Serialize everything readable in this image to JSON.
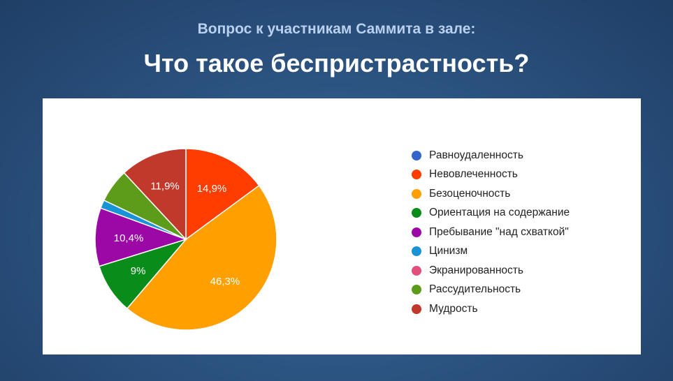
{
  "header": {
    "subtitle": "Вопрос к участникам Саммита в зале:",
    "title": "Что такое беспристрастность?"
  },
  "chart_data": {
    "type": "pie",
    "categories": [
      "Равноудаленность",
      "Невовлеченность",
      "Безоценочность",
      "Ориентация на содержание",
      "Пребывание \"над схваткой\"",
      "Цинизм",
      "Экранированность",
      "Рассудительность",
      "Мудрость"
    ],
    "values": [
      0,
      14.9,
      46.3,
      9,
      10.4,
      1.5,
      0,
      6,
      11.9
    ],
    "labels": [
      "",
      "14,9%",
      "46,3%",
      "9%",
      "10,4%",
      "",
      "",
      "",
      "11,9%"
    ],
    "colors": [
      "#3366cc",
      "#ff3d00",
      "#ffa000",
      "#0a8c1a",
      "#9c08a6",
      "#1a93d6",
      "#e0507a",
      "#5c9c1a",
      "#c0392b"
    ],
    "start_angle_deg": 90
  }
}
